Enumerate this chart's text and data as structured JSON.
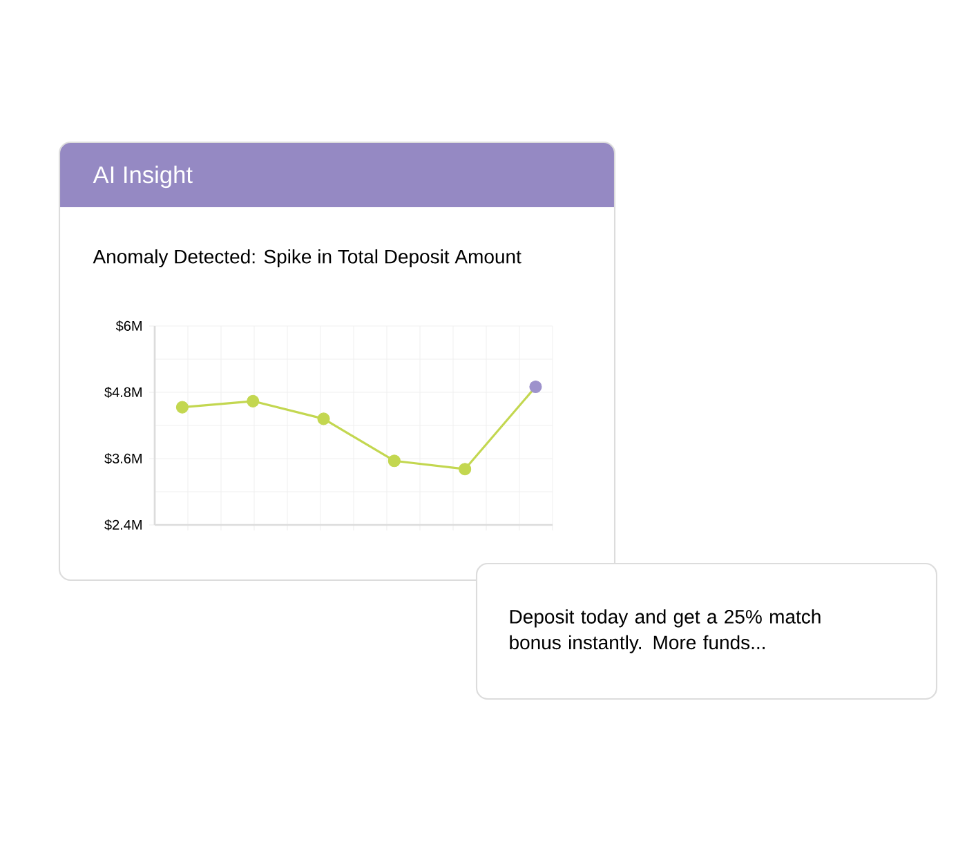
{
  "chart_data": {
    "type": "line",
    "title": "AI Insight",
    "subtitle": "Anomaly Detected: Spike in Total Deposit Amount",
    "categories": [
      null,
      null,
      null,
      null,
      null,
      null
    ],
    "series": [
      {
        "color": "#c3d750",
        "colors": [
          "#c3d750",
          "#c3d750",
          "#c3d750",
          "#c3d750",
          "#c3d750",
          "#9d92cc"
        ],
        "values": [
          4.53,
          4.64,
          4.32,
          3.56,
          3.41,
          4.9
        ]
      }
    ],
    "ylim": [
      2.4,
      6
    ],
    "yticks": [
      {
        "value": 2.4,
        "label": "$2.4M"
      },
      {
        "value": 3.6,
        "label": "$3.6M"
      },
      {
        "value": 4.8,
        "label": "$4.8M"
      },
      {
        "value": 6,
        "label": "$6M"
      }
    ],
    "grid": true,
    "tick_labels": "y",
    "marker": "circle",
    "line_style": "solid",
    "annotations": [
      "Deposit today and get a 25% match bonus instantly. More funds..."
    ]
  }
}
